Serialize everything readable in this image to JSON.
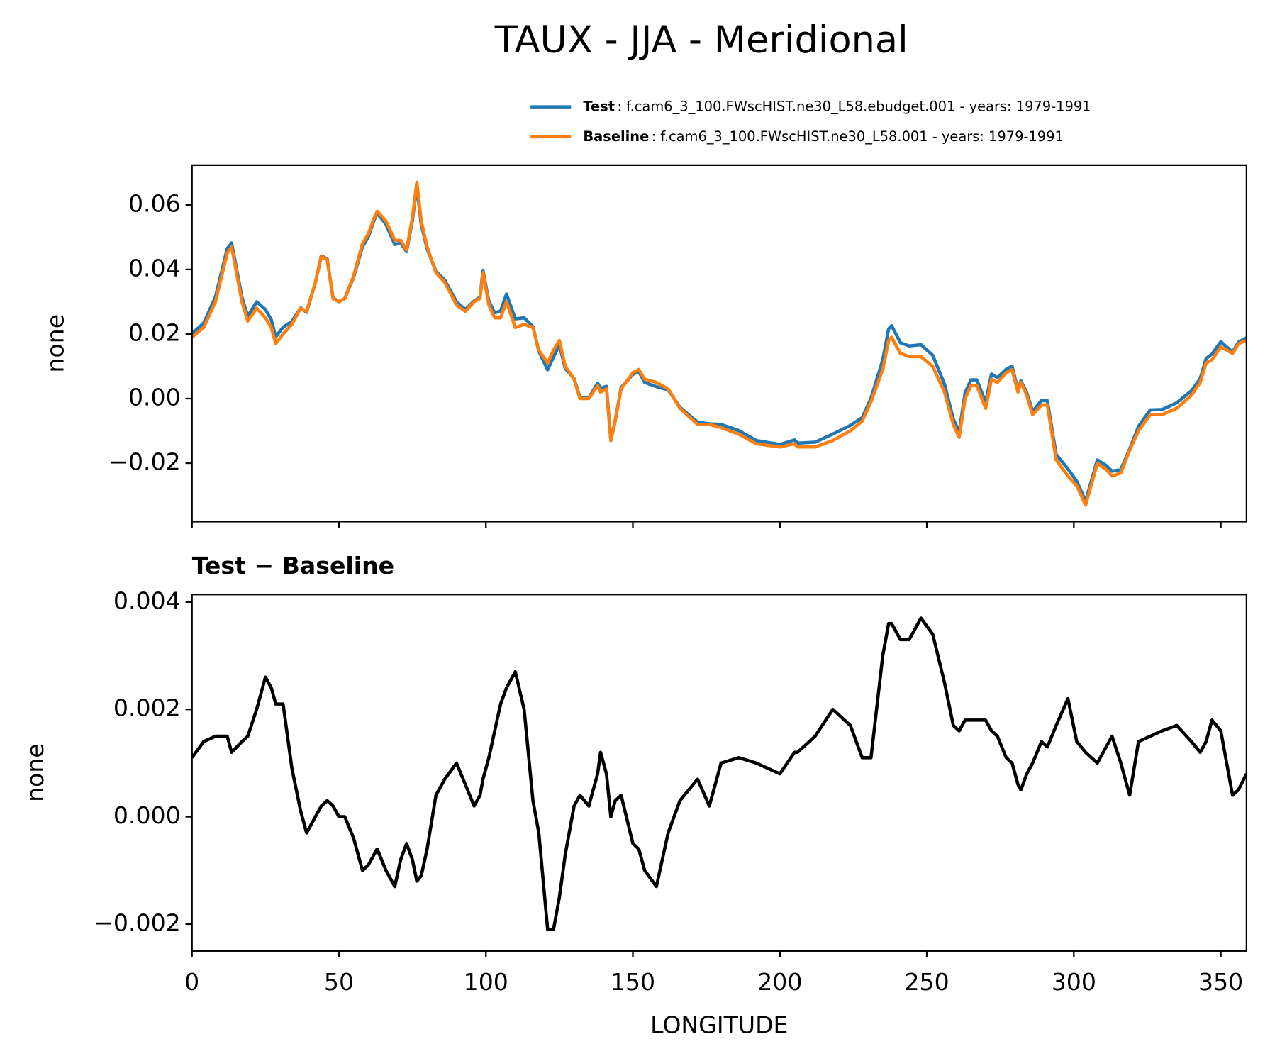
{
  "chart_data": [
    {
      "type": "line",
      "title": "TAUX - JJA - Meridional",
      "ylabel": "none",
      "x": [
        0,
        4,
        8,
        12,
        13.5,
        17,
        19,
        22,
        25,
        27,
        28.5,
        31,
        34,
        37,
        39,
        42,
        44,
        46,
        48,
        50,
        52,
        55,
        58,
        60,
        62,
        63,
        66,
        69,
        71,
        73,
        75,
        76.5,
        78,
        80,
        83,
        86,
        90,
        93,
        96,
        98,
        99,
        101,
        103,
        105,
        107,
        110,
        113,
        116,
        118,
        121,
        123,
        125,
        127,
        130,
        132,
        135,
        138,
        139,
        141,
        142.5,
        144,
        146,
        150,
        152,
        154,
        158,
        162,
        166,
        172,
        176,
        180,
        186,
        192,
        200,
        205,
        206,
        212,
        218,
        224,
        228,
        231,
        235,
        237,
        238,
        241,
        244,
        248,
        252,
        256,
        259,
        261,
        263,
        265,
        267,
        270,
        272,
        274,
        277,
        279,
        281,
        282,
        284,
        286,
        289,
        291,
        294,
        298,
        301,
        304,
        308,
        311,
        313,
        316,
        319,
        322,
        326,
        330,
        335,
        340,
        343,
        345,
        347,
        350,
        352,
        354,
        356,
        358.75
      ],
      "series": [
        {
          "name": "Test",
          "detail": ": f.cam6_3_100.FWscHIST.ne30_L58.ebudget.001 - years: 1979-1991",
          "color": "#1f77b4",
          "values": [
            0.0201,
            0.0234,
            0.0315,
            0.0465,
            0.0482,
            0.0314,
            0.0255,
            0.03,
            0.0276,
            0.0244,
            0.0191,
            0.0221,
            0.0239,
            0.0281,
            0.0267,
            0.036,
            0.0442,
            0.0433,
            0.0312,
            0.03,
            0.031,
            0.0376,
            0.047,
            0.0501,
            0.0553,
            0.0574,
            0.054,
            0.0477,
            0.0482,
            0.0455,
            0.0552,
            0.0658,
            0.0539,
            0.0464,
            0.0394,
            0.0367,
            0.03,
            0.0276,
            0.0302,
            0.0314,
            0.0397,
            0.0301,
            0.0266,
            0.0271,
            0.0324,
            0.0247,
            0.025,
            0.0223,
            0.0147,
            0.0089,
            0.0129,
            0.0165,
            0.0093,
            0.0062,
            0.0004,
            0.0002,
            0.0048,
            0.0032,
            0.0038,
            -0.013,
            -0.0067,
            0.0034,
            0.0075,
            0.0084,
            0.005,
            0.0037,
            0.0027,
            -0.0027,
            -0.0073,
            -0.0078,
            -0.008,
            -0.0099,
            -0.013,
            -0.0142,
            -0.0128,
            -0.0138,
            -0.0135,
            -0.011,
            -0.0083,
            -0.0059,
            0.0001,
            0.012,
            0.0216,
            0.0226,
            0.0173,
            0.0163,
            0.0167,
            0.0134,
            0.0045,
            -0.0063,
            -0.0104,
            0.0018,
            0.0058,
            0.0058,
            -0.0012,
            0.0076,
            0.0065,
            0.0091,
            0.01,
            0.0026,
            0.0055,
            0.0018,
            -0.004,
            -0.0006,
            -0.0007,
            -0.0173,
            -0.0218,
            -0.0256,
            -0.0318,
            -0.019,
            -0.0207,
            -0.0225,
            -0.022,
            -0.0156,
            -0.0086,
            -0.0035,
            -0.0034,
            -0.0013,
            0.0024,
            0.0062,
            0.0124,
            0.0138,
            0.0176,
            0.016,
            0.0144,
            0.0175,
            0.0188
          ]
        },
        {
          "name": "Baseline",
          "detail": ": f.cam6_3_100.FWscHIST.ne30_L58.001 - years: 1979-1991",
          "color": "#ff7f0e",
          "values": [
            0.019,
            0.022,
            0.03,
            0.045,
            0.047,
            0.03,
            0.024,
            0.028,
            0.025,
            0.022,
            0.017,
            0.02,
            0.023,
            0.028,
            0.027,
            0.036,
            0.044,
            0.043,
            0.031,
            0.03,
            0.031,
            0.038,
            0.048,
            0.051,
            0.056,
            0.058,
            0.055,
            0.049,
            0.049,
            0.046,
            0.056,
            0.067,
            0.055,
            0.047,
            0.039,
            0.036,
            0.029,
            0.027,
            0.03,
            0.031,
            0.039,
            0.029,
            0.025,
            0.025,
            0.03,
            0.022,
            0.023,
            0.022,
            0.015,
            0.011,
            0.015,
            0.018,
            0.01,
            0.006,
            0.0,
            0.0,
            0.004,
            0.002,
            0.003,
            -0.013,
            -0.007,
            0.003,
            0.008,
            0.009,
            0.006,
            0.005,
            0.003,
            -0.003,
            -0.008,
            -0.008,
            -0.009,
            -0.011,
            -0.014,
            -0.015,
            -0.014,
            -0.015,
            -0.015,
            -0.013,
            -0.01,
            -0.007,
            -0.001,
            0.009,
            0.018,
            0.019,
            0.014,
            0.013,
            0.013,
            0.01,
            0.002,
            -0.008,
            -0.012,
            0.0,
            0.004,
            0.004,
            -0.003,
            0.006,
            0.005,
            0.008,
            0.009,
            0.002,
            0.005,
            0.001,
            -0.005,
            -0.002,
            -0.002,
            -0.019,
            -0.024,
            -0.027,
            -0.033,
            -0.02,
            -0.022,
            -0.024,
            -0.023,
            -0.016,
            -0.01,
            -0.005,
            -0.005,
            -0.003,
            0.001,
            0.005,
            0.011,
            0.012,
            0.016,
            0.015,
            0.014,
            0.017,
            0.018
          ]
        }
      ],
      "xlim": [
        0,
        358.75
      ],
      "xticks": [
        0,
        50,
        100,
        150,
        200,
        250,
        300,
        350
      ],
      "ylim": [
        -0.0381,
        0.0723
      ],
      "yticks": [
        {
          "value": -0.02,
          "label": "−0.02"
        },
        {
          "value": 0,
          "label": "0.00"
        },
        {
          "value": 0.02,
          "label": "0.02"
        },
        {
          "value": 0.04,
          "label": "0.04"
        },
        {
          "value": 0.06,
          "label": "0.06"
        }
      ]
    },
    {
      "type": "line",
      "title": "Test − Baseline",
      "ylabel": "none",
      "xlabel": "LONGITUDE",
      "x": [
        0,
        4,
        8,
        12,
        13.5,
        17,
        19,
        22,
        25,
        27,
        28.5,
        31,
        34,
        37,
        39,
        42,
        44,
        46,
        48,
        50,
        52,
        55,
        58,
        60,
        62,
        63,
        66,
        69,
        71,
        73,
        75,
        76.5,
        78,
        80,
        83,
        86,
        90,
        93,
        96,
        98,
        99,
        101,
        103,
        105,
        107,
        110,
        113,
        116,
        118,
        121,
        123,
        125,
        127,
        130,
        132,
        135,
        138,
        139,
        141,
        142.5,
        144,
        146,
        150,
        152,
        154,
        158,
        162,
        166,
        172,
        176,
        180,
        186,
        192,
        200,
        205,
        206,
        212,
        218,
        224,
        228,
        231,
        235,
        237,
        238,
        241,
        244,
        248,
        252,
        256,
        259,
        261,
        263,
        265,
        267,
        270,
        272,
        274,
        277,
        279,
        281,
        282,
        284,
        286,
        289,
        291,
        294,
        298,
        301,
        304,
        308,
        311,
        313,
        316,
        319,
        322,
        326,
        330,
        335,
        340,
        343,
        345,
        347,
        350,
        352,
        354,
        356,
        358.75
      ],
      "series": [
        {
          "color": "#000000",
          "values": [
            0.0011,
            0.0014,
            0.0015,
            0.0015,
            0.0012,
            0.0014,
            0.0015,
            0.002,
            0.0026,
            0.0024,
            0.0021,
            0.0021,
            0.0009,
            0.0001,
            -0.0003,
            0.0,
            0.0002,
            0.0003,
            0.0002,
            0.0,
            0.0,
            -0.0004,
            -0.001,
            -0.0009,
            -0.0007,
            -0.0006,
            -0.001,
            -0.0013,
            -0.0008,
            -0.0005,
            -0.0008,
            -0.0012,
            -0.0011,
            -0.0006,
            0.0004,
            0.0007,
            0.001,
            0.0006,
            0.0002,
            0.0004,
            0.0007,
            0.0011,
            0.0016,
            0.0021,
            0.0024,
            0.0027,
            0.002,
            0.0003,
            -0.0003,
            -0.0021,
            -0.0021,
            -0.0015,
            -0.0007,
            0.0002,
            0.0004,
            0.0002,
            0.0008,
            0.0012,
            0.0008,
            0.0,
            0.0003,
            0.0004,
            -0.0005,
            -0.0006,
            -0.001,
            -0.0013,
            -0.0003,
            0.0003,
            0.0007,
            0.0002,
            0.001,
            0.0011,
            0.001,
            0.0008,
            0.0012,
            0.0012,
            0.0015,
            0.002,
            0.0017,
            0.0011,
            0.0011,
            0.003,
            0.0036,
            0.0036,
            0.0033,
            0.0033,
            0.0037,
            0.0034,
            0.0025,
            0.0017,
            0.0016,
            0.0018,
            0.0018,
            0.0018,
            0.0018,
            0.0016,
            0.0015,
            0.0011,
            0.001,
            0.0006,
            0.0005,
            0.0008,
            0.001,
            0.0014,
            0.0013,
            0.0017,
            0.0022,
            0.0014,
            0.0012,
            0.001,
            0.0013,
            0.0015,
            0.001,
            0.0004,
            0.0014,
            0.0015,
            0.0016,
            0.0017,
            0.0014,
            0.0012,
            0.0014,
            0.0018,
            0.0016,
            0.001,
            0.0004,
            0.0005,
            0.0008
          ]
        }
      ],
      "xlim": [
        0,
        358.75
      ],
      "xticks": [
        0,
        50,
        100,
        150,
        200,
        250,
        300,
        350
      ],
      "ylim": [
        -0.0025,
        0.00414
      ],
      "yticks": [
        {
          "value": -0.002,
          "label": "−0.002"
        },
        {
          "value": 0,
          "label": "0.000"
        },
        {
          "value": 0.002,
          "label": "0.002"
        },
        {
          "value": 0.004,
          "label": "0.004"
        }
      ]
    }
  ]
}
